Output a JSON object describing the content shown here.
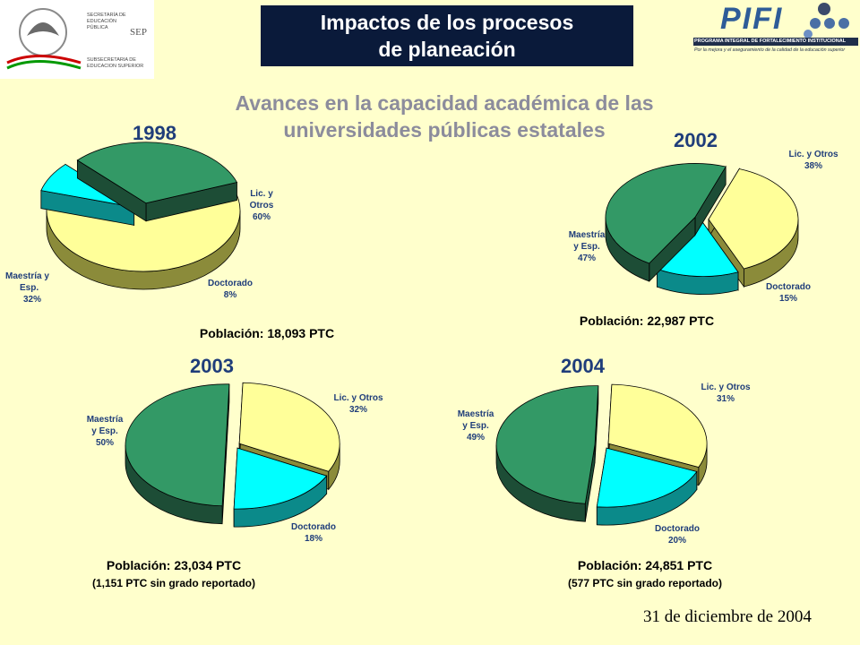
{
  "header": {
    "title_line1": "Impactos de los procesos",
    "title_line2": "de planeación",
    "subtitle_line1": "Avances en la capacidad académica de las",
    "subtitle_line2": "universidades públicas estatales"
  },
  "logos": {
    "sep_line1": "SECRETARÍA DE",
    "sep_line2": "EDUCACIÓN",
    "sep_line3": "PÚBLICA",
    "sep_mark": "SEP",
    "sep_sub1": "SUBSECRETARIA DE",
    "sep_sub2": "EDUCACION SUPERIOR",
    "pifi_word": "PIFI",
    "pifi_line1": "PROGRAMA INTEGRAL DE FORTALECIMIENTO INSTITUCIONAL",
    "pifi_line2": "Por la mejora y el aseguramiento de la calidad de la educación superior"
  },
  "footer": {
    "date": "31 de diciembre de 2004"
  },
  "colors": {
    "lic": "#FFFF99",
    "doc": "#00FFFF",
    "mae": "#339966",
    "title_bg": "#0A1A3A",
    "text_blue": "#1F3D7A"
  },
  "chart_data": [
    {
      "type": "pie",
      "title": "1998",
      "population": "Población: 18,093 PTC",
      "note": "",
      "slices": [
        {
          "label_l1": "Lic. y",
          "label_l2": "Otros",
          "pct": "60%",
          "value": 60
        },
        {
          "label_l1": "Doctorado",
          "label_l2": "",
          "pct": "8%",
          "value": 8
        },
        {
          "label_l1": "Maestría y",
          "label_l2": "Esp.",
          "pct": "32%",
          "value": 32
        }
      ]
    },
    {
      "type": "pie",
      "title": "2002",
      "population": "Población: 22,987 PTC",
      "note": "",
      "slices": [
        {
          "label_l1": "Lic. y Otros",
          "label_l2": "",
          "pct": "38%",
          "value": 38
        },
        {
          "label_l1": "Doctorado",
          "label_l2": "",
          "pct": "15%",
          "value": 15
        },
        {
          "label_l1": "Maestría",
          "label_l2": "y Esp.",
          "pct": "47%",
          "value": 47
        }
      ]
    },
    {
      "type": "pie",
      "title": "2003",
      "population": "Población: 23,034 PTC",
      "note": "(1,151 PTC sin grado reportado)",
      "slices": [
        {
          "label_l1": "Lic. y Otros",
          "label_l2": "",
          "pct": "32%",
          "value": 32
        },
        {
          "label_l1": "Doctorado",
          "label_l2": "",
          "pct": "18%",
          "value": 18
        },
        {
          "label_l1": "Maestría",
          "label_l2": "y Esp.",
          "pct": "50%",
          "value": 50
        }
      ]
    },
    {
      "type": "pie",
      "title": "2004",
      "population": "Población: 24,851 PTC",
      "note": "(577 PTC sin grado reportado)",
      "slices": [
        {
          "label_l1": "Lic. y Otros",
          "label_l2": "",
          "pct": "31%",
          "value": 31
        },
        {
          "label_l1": "Doctorado",
          "label_l2": "",
          "pct": "20%",
          "value": 20
        },
        {
          "label_l1": "Maestría",
          "label_l2": "y Esp.",
          "pct": "49%",
          "value": 49
        }
      ]
    }
  ]
}
